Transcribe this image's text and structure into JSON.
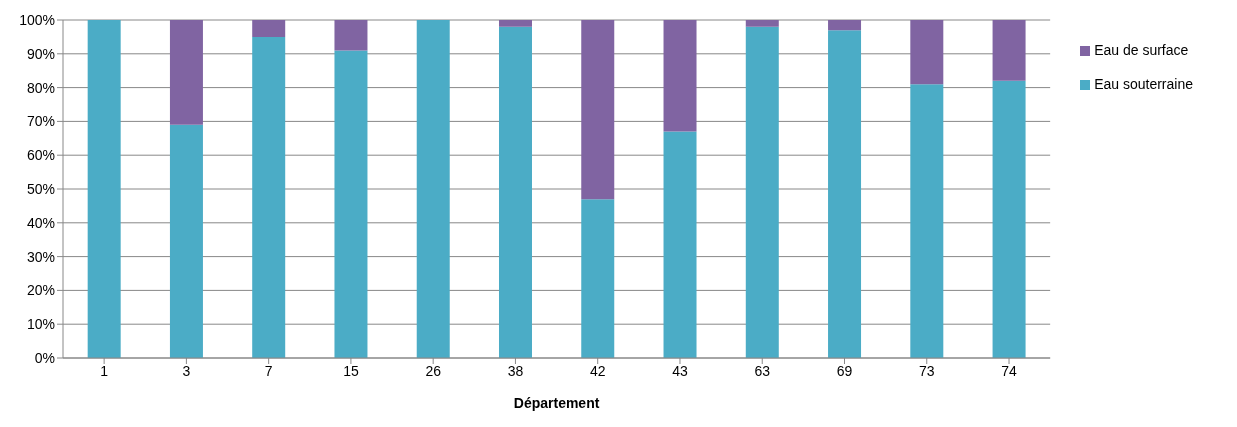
{
  "chart_data": {
    "type": "bar",
    "stacked": true,
    "xlabel": "Département",
    "categories": [
      "1",
      "3",
      "7",
      "15",
      "26",
      "38",
      "42",
      "43",
      "63",
      "69",
      "73",
      "74"
    ],
    "series": [
      {
        "name": "Eau souterraine",
        "color": "#4bacc6",
        "values": [
          100,
          69,
          95,
          91,
          100,
          98,
          47,
          67,
          98,
          97,
          81,
          82
        ]
      },
      {
        "name": "Eau de surface",
        "color": "#8064a2",
        "values": [
          0,
          31,
          5,
          9,
          0,
          2,
          53,
          33,
          2,
          3,
          19,
          18
        ]
      }
    ],
    "ylim": [
      0,
      100
    ],
    "yticks": [
      {
        "value": 0,
        "label": "0%"
      },
      {
        "value": 10,
        "label": "10%"
      },
      {
        "value": 20,
        "label": "20%"
      },
      {
        "value": 30,
        "label": "30%"
      },
      {
        "value": 40,
        "label": "40%"
      },
      {
        "value": 50,
        "label": "50%"
      },
      {
        "value": 60,
        "label": "60%"
      },
      {
        "value": 70,
        "label": "70%"
      },
      {
        "value": 80,
        "label": "80%"
      },
      {
        "value": 90,
        "label": "90%"
      },
      {
        "value": 100,
        "label": "100%"
      }
    ],
    "grid": "y",
    "legend": "right"
  }
}
